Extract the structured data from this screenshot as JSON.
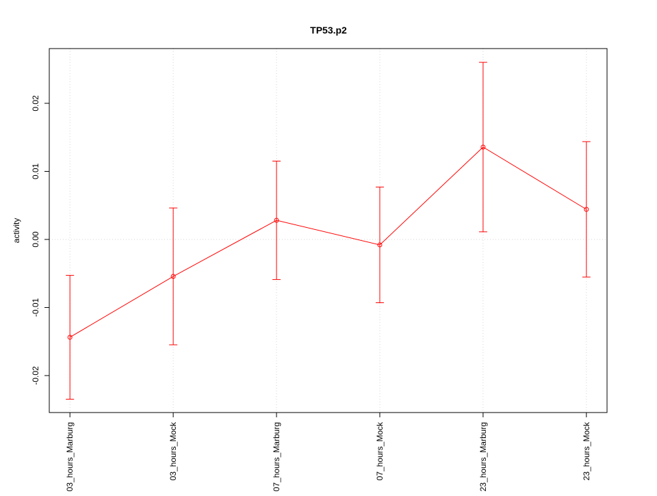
{
  "chart_data": {
    "type": "line",
    "title": "TP53.p2",
    "y_label": "activity",
    "categories": [
      "03_hours_Marburg",
      "03_hours_Mock",
      "07_hours_Marburg",
      "07_hours_Mock",
      "23_hours_Marburg",
      "23_hours_Mock"
    ],
    "series": [
      {
        "color": "#ff0000",
        "values": [
          -0.01437,
          -0.00543,
          0.00281,
          -0.0008,
          0.01357,
          0.00442
        ],
        "errors": [
          0.0091,
          0.01005,
          0.0087,
          0.0085,
          0.01245,
          0.00995
        ]
      }
    ],
    "ylim": [
      -0.02543,
      0.02804
    ],
    "yticks": [
      -0.02,
      -0.01,
      {
        "value": 0,
        "label": "0.00"
      },
      0.01,
      0.02
    ],
    "reference_line": 0,
    "grid": true
  }
}
